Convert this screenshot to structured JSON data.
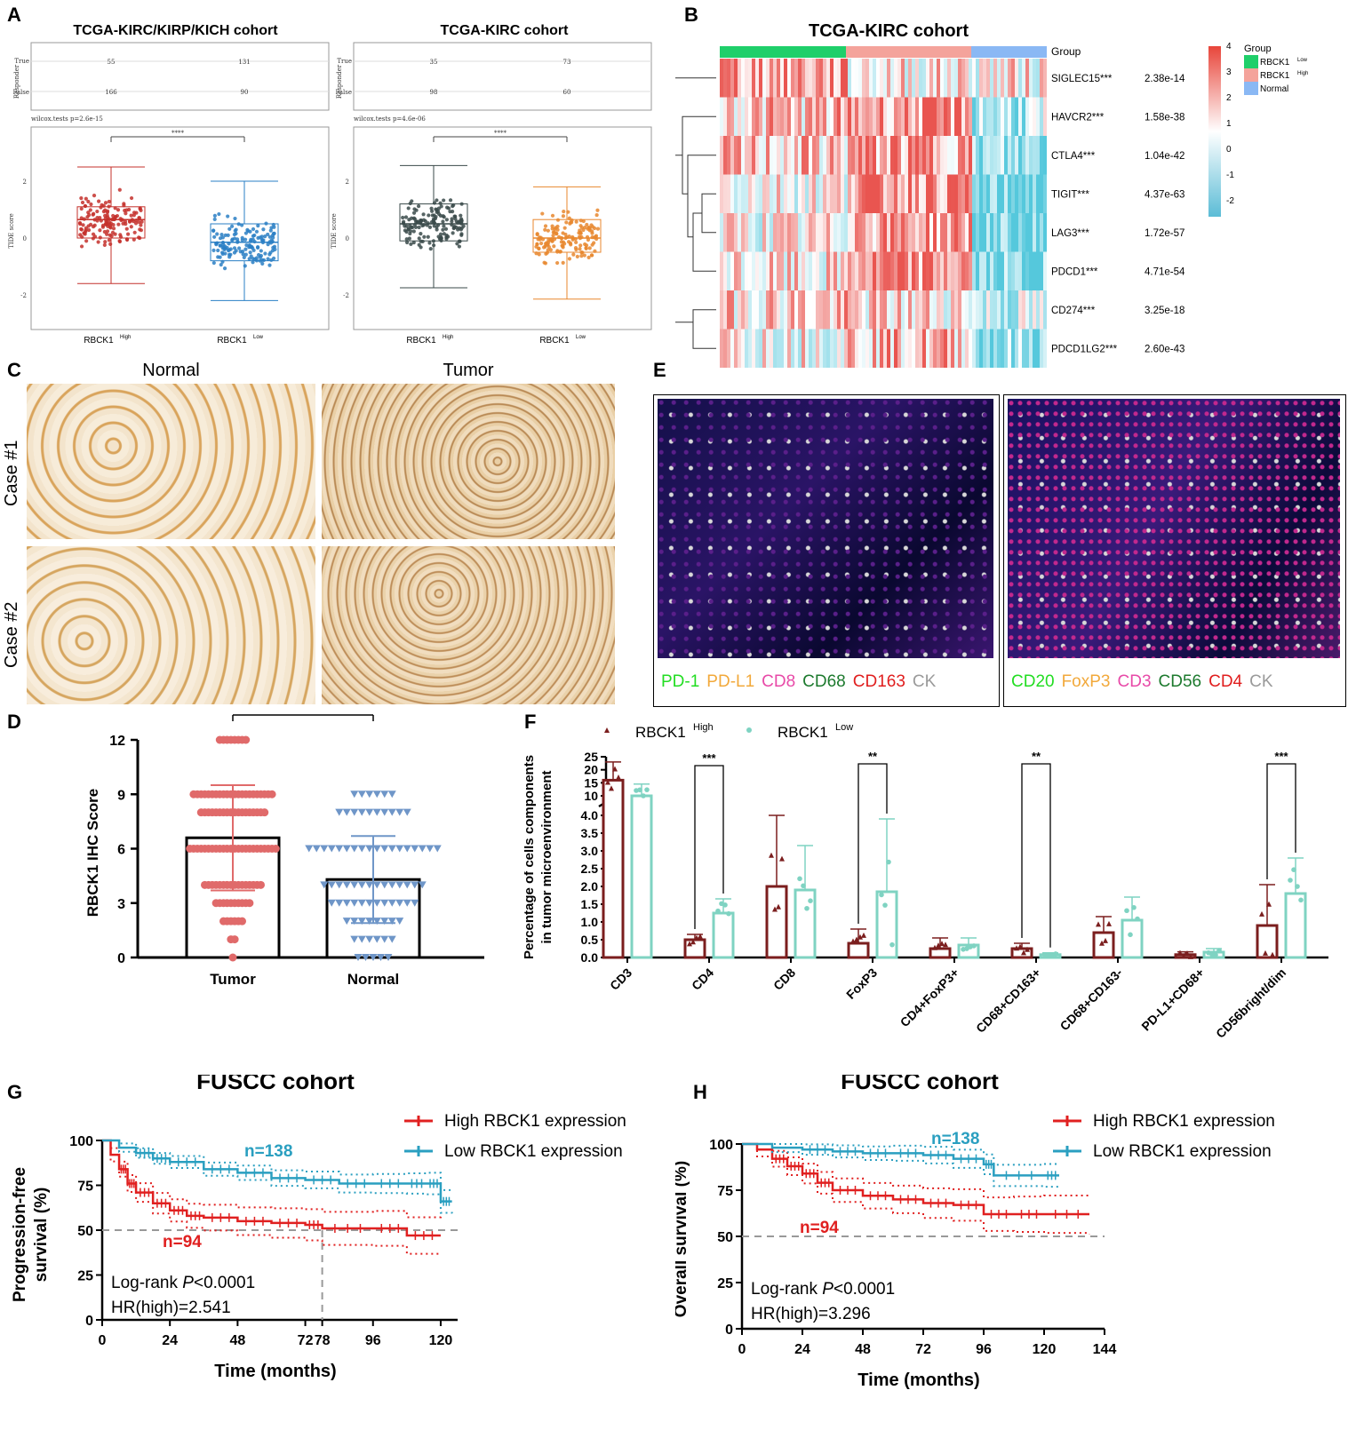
{
  "panels": {
    "A": {
      "letter": "A",
      "left": {
        "title": "TCGA-KIRC/KIRP/KICH cohort",
        "responder_label": "Responder",
        "true_label": "True",
        "false_label": "False",
        "table": {
          "true": [
            "55",
            "131"
          ],
          "false": [
            "166",
            "90"
          ]
        },
        "test": "wilcox.tests p=2.6e-15",
        "sig": "****",
        "ylabel": "TIDE score",
        "yticks": [
          "2",
          "0",
          "-2"
        ],
        "groups": [
          "RBCK1",
          "RBCK1"
        ],
        "group_sup": [
          "High",
          "Low"
        ],
        "colors": [
          "#c4302b",
          "#2a7fc4"
        ]
      },
      "right": {
        "title": "TCGA-KIRC cohort",
        "responder_label": "Responder",
        "true_label": "True",
        "false_label": "False",
        "table": {
          "true": [
            "35",
            "73"
          ],
          "false": [
            "98",
            "60"
          ]
        },
        "test": "wilcox.tests p=4.6e-06",
        "sig": "****",
        "ylabel": "TIDE score",
        "yticks": [
          "2",
          "0",
          "-2"
        ],
        "groups": [
          "RBCK1",
          "RBCK1"
        ],
        "group_sup": [
          "High",
          "Low"
        ],
        "colors": [
          "#3a4a4a",
          "#e8872e"
        ]
      }
    },
    "B": {
      "letter": "B",
      "title": "TCGA-KIRC cohort",
      "group_label": "Group",
      "genes": [
        "SIGLEC15***",
        "HAVCR2***",
        "CTLA4***",
        "TIGIT***",
        "LAG3***",
        "PDCD1***",
        "CD274***",
        "PDCD1LG2***"
      ],
      "pvalues": [
        "2.38e-14",
        "1.58e-38",
        "1.04e-42",
        "4.37e-63",
        "1.72e-57",
        "4.71e-54",
        "3.25e-18",
        "2.60e-43"
      ],
      "scale_ticks": [
        "4",
        "3",
        "2",
        "1",
        "0",
        "-1",
        "-2"
      ],
      "legend_title": "Group",
      "legend_items": [
        {
          "label": "RBCK1",
          "sup": "Low",
          "color": "#1fcf6a"
        },
        {
          "label": "RBCK1",
          "sup": "High",
          "color": "#f4a39b"
        },
        {
          "label": "Normal",
          "sup": "",
          "color": "#8ab8f4"
        }
      ]
    },
    "C": {
      "letter": "C",
      "columns": [
        "Normal",
        "Tumor"
      ],
      "rows": [
        "Case #1",
        "Case #2"
      ]
    },
    "D": {
      "letter": "D",
      "ylabel": "RBCK1 IHC Score",
      "yticks": [
        "0",
        "3",
        "6",
        "9",
        "12"
      ],
      "categories": [
        "Tumor",
        "Normal"
      ],
      "sig": "****"
    },
    "E": {
      "letter": "E",
      "left_legend": [
        {
          "label": "PD-1",
          "color": "#22dd22"
        },
        {
          "label": "PD-L1",
          "color": "#f2a93b"
        },
        {
          "label": "CD8",
          "color": "#e84aa8"
        },
        {
          "label": "CD68",
          "color": "#1d7a2e"
        },
        {
          "label": "CD163",
          "color": "#e01e1e"
        },
        {
          "label": "CK",
          "color": "#9a9a9a"
        }
      ],
      "right_legend": [
        {
          "label": "CD20",
          "color": "#22dd22"
        },
        {
          "label": "FoxP3",
          "color": "#f2a93b"
        },
        {
          "label": "CD3",
          "color": "#e84aa8"
        },
        {
          "label": "CD56",
          "color": "#1d7a2e"
        },
        {
          "label": "CD4",
          "color": "#e01e1e"
        },
        {
          "label": "CK",
          "color": "#9a9a9a"
        }
      ]
    },
    "F": {
      "letter": "F",
      "ylabel_line1": "Percentage of cells components",
      "ylabel_line2": "in tumor microenvironment",
      "legend": [
        {
          "label": "RBCK1",
          "sup": "High",
          "color": "#7b1e1e"
        },
        {
          "label": "RBCK1",
          "sup": "Low",
          "color": "#7fd3c2"
        }
      ],
      "yticks_top": [
        "25",
        "20",
        "15",
        "10"
      ],
      "yticks_bottom": [
        "4.0",
        "3.5",
        "3.0",
        "2.5",
        "2.0",
        "1.5",
        "1.0",
        "0.5",
        "0.0"
      ],
      "categories": [
        "CD3",
        "CD4",
        "CD8",
        "FoxP3",
        "CD4+FoxP3+",
        "CD68+CD163+",
        "CD68+CD163-",
        "PD-L1+CD68+",
        "CD56bright/dim"
      ],
      "sig": [
        "",
        "***",
        "",
        "**",
        "",
        "**",
        "",
        "",
        "***"
      ]
    },
    "G": {
      "letter": "G",
      "title": "FUSCC cohort",
      "ylabel_line1": "Progression-free",
      "ylabel_line2": "survival (%)",
      "xlabel": "Time (months)",
      "xticks": [
        "0",
        "24",
        "48",
        "72",
        "78",
        "96",
        "120"
      ],
      "yticks": [
        "0",
        "25",
        "50",
        "75",
        "100"
      ],
      "legend": [
        "High RBCK1 expression",
        "Low RBCK1 expression"
      ],
      "n_low": "n=138",
      "n_high": "n=94",
      "stat1_pre": "Log-rank ",
      "stat1_p": "P",
      "stat1_post": "<0.0001",
      "stat2": "HR(high)=2.541"
    },
    "H": {
      "letter": "H",
      "title": "FUSCC cohort",
      "ylabel": "Overall survival (%)",
      "xlabel": "Time (months)",
      "xticks": [
        "0",
        "24",
        "48",
        "72",
        "96",
        "120",
        "144"
      ],
      "yticks": [
        "0",
        "25",
        "50",
        "75",
        "100"
      ],
      "legend": [
        "High RBCK1 expression",
        "Low RBCK1 expression"
      ],
      "n_low": "n=138",
      "n_high": "n=94",
      "stat1_pre": "Log-rank ",
      "stat1_p": "P",
      "stat1_post": "<0.0001",
      "stat2": "HR(high)=3.296"
    }
  },
  "chart_data": [
    {
      "type": "bar",
      "panel": "D",
      "categories": [
        "Tumor",
        "Normal"
      ],
      "values": [
        6.6,
        4.3
      ],
      "error": [
        2.9,
        2.4
      ],
      "ylabel": "RBCK1 IHC Score",
      "ylim": [
        0,
        12
      ]
    },
    {
      "type": "bar",
      "panel": "F",
      "categories": [
        "CD3",
        "CD4",
        "CD8",
        "FoxP3",
        "CD4+FoxP3+",
        "CD68+CD163+",
        "CD68+CD163-",
        "PD-L1+CD68+",
        "CD56bright/dim"
      ],
      "series": [
        {
          "name": "RBCK1High",
          "values": [
            16,
            0.5,
            2.0,
            0.4,
            0.25,
            0.25,
            0.7,
            0.08,
            0.9
          ]
        },
        {
          "name": "RBCK1Low",
          "values": [
            9.5,
            1.25,
            1.9,
            1.85,
            0.35,
            0.08,
            1.05,
            0.15,
            1.8
          ]
        }
      ]
    },
    {
      "type": "line",
      "panel": "G",
      "title": "FUSCC cohort",
      "xlabel": "Time (months)",
      "ylabel": "Progression-free survival (%)",
      "xlim": [
        0,
        126
      ],
      "ylim": [
        0,
        100
      ],
      "series": [
        {
          "name": "High RBCK1 expression",
          "x": [
            0,
            3,
            6,
            9,
            12,
            18,
            24,
            30,
            36,
            48,
            60,
            72,
            78,
            96,
            108,
            120
          ],
          "y": [
            100,
            92,
            84,
            76,
            71,
            65,
            61,
            58,
            57,
            55,
            54,
            53,
            51,
            51,
            47,
            47
          ]
        },
        {
          "name": "Low RBCK1 expression",
          "x": [
            0,
            6,
            12,
            18,
            24,
            36,
            48,
            60,
            72,
            84,
            96,
            108,
            115,
            120,
            124
          ],
          "y": [
            100,
            96,
            93,
            90,
            88,
            84,
            82,
            79,
            78,
            76,
            76,
            76,
            76,
            66,
            66
          ]
        }
      ]
    },
    {
      "type": "line",
      "panel": "H",
      "title": "FUSCC cohort",
      "xlabel": "Time (months)",
      "ylabel": "Overall survival (%)",
      "xlim": [
        0,
        144
      ],
      "ylim": [
        0,
        100
      ],
      "series": [
        {
          "name": "High RBCK1 expression",
          "x": [
            0,
            6,
            12,
            18,
            24,
            30,
            36,
            48,
            60,
            72,
            84,
            96,
            108,
            120,
            138
          ],
          "y": [
            100,
            97,
            92,
            88,
            84,
            79,
            75,
            72,
            70,
            68,
            67,
            62,
            62,
            62,
            62
          ]
        },
        {
          "name": "Low RBCK1 expression",
          "x": [
            0,
            12,
            24,
            36,
            48,
            60,
            72,
            84,
            96,
            100,
            120,
            126
          ],
          "y": [
            100,
            98,
            97,
            96,
            95,
            95,
            94,
            92,
            89,
            83,
            83,
            83
          ]
        }
      ]
    }
  ]
}
